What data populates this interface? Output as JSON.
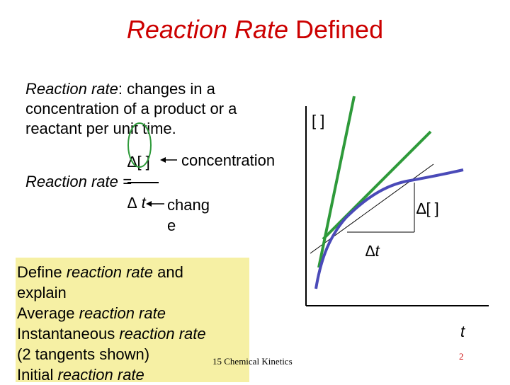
{
  "title": {
    "italic": "Reaction Rate",
    "rest": " Defined"
  },
  "definition": {
    "term": "Reaction rate",
    "text": ": changes in a concentration of a product or a reactant per unit time."
  },
  "formula": {
    "numerator": "∆[ ]",
    "numerator_label": "concentration",
    "lhs": "Reaction rate =",
    "denominator": "∆ t",
    "denominator_label_1": "chang",
    "denominator_label_2": "e"
  },
  "notes": [
    {
      "prefix": "Define ",
      "italic": "reaction rate",
      "suffix": " and"
    },
    {
      "prefix": "explain",
      "italic": "",
      "suffix": ""
    },
    {
      "prefix": "Average ",
      "italic": "reaction rate",
      "suffix": ""
    },
    {
      "prefix": "Instantaneous ",
      "italic": "reaction rate",
      "suffix": ""
    },
    {
      "prefix": "(2 tangents shown)",
      "italic": "",
      "suffix": ""
    },
    {
      "prefix": "Initial ",
      "italic": "reaction rate",
      "suffix": ""
    }
  ],
  "graph": {
    "y_axis_label": "[ ]",
    "x_axis_label": "t",
    "delta_conc": "∆[ ]",
    "delta_t": "∆t",
    "curve_color": "#4a4ab8",
    "tangent_color": "#2e9a3a",
    "axis_color": "#000000"
  },
  "footer": {
    "source": "15 Chemical Kinetics",
    "page": "2"
  }
}
